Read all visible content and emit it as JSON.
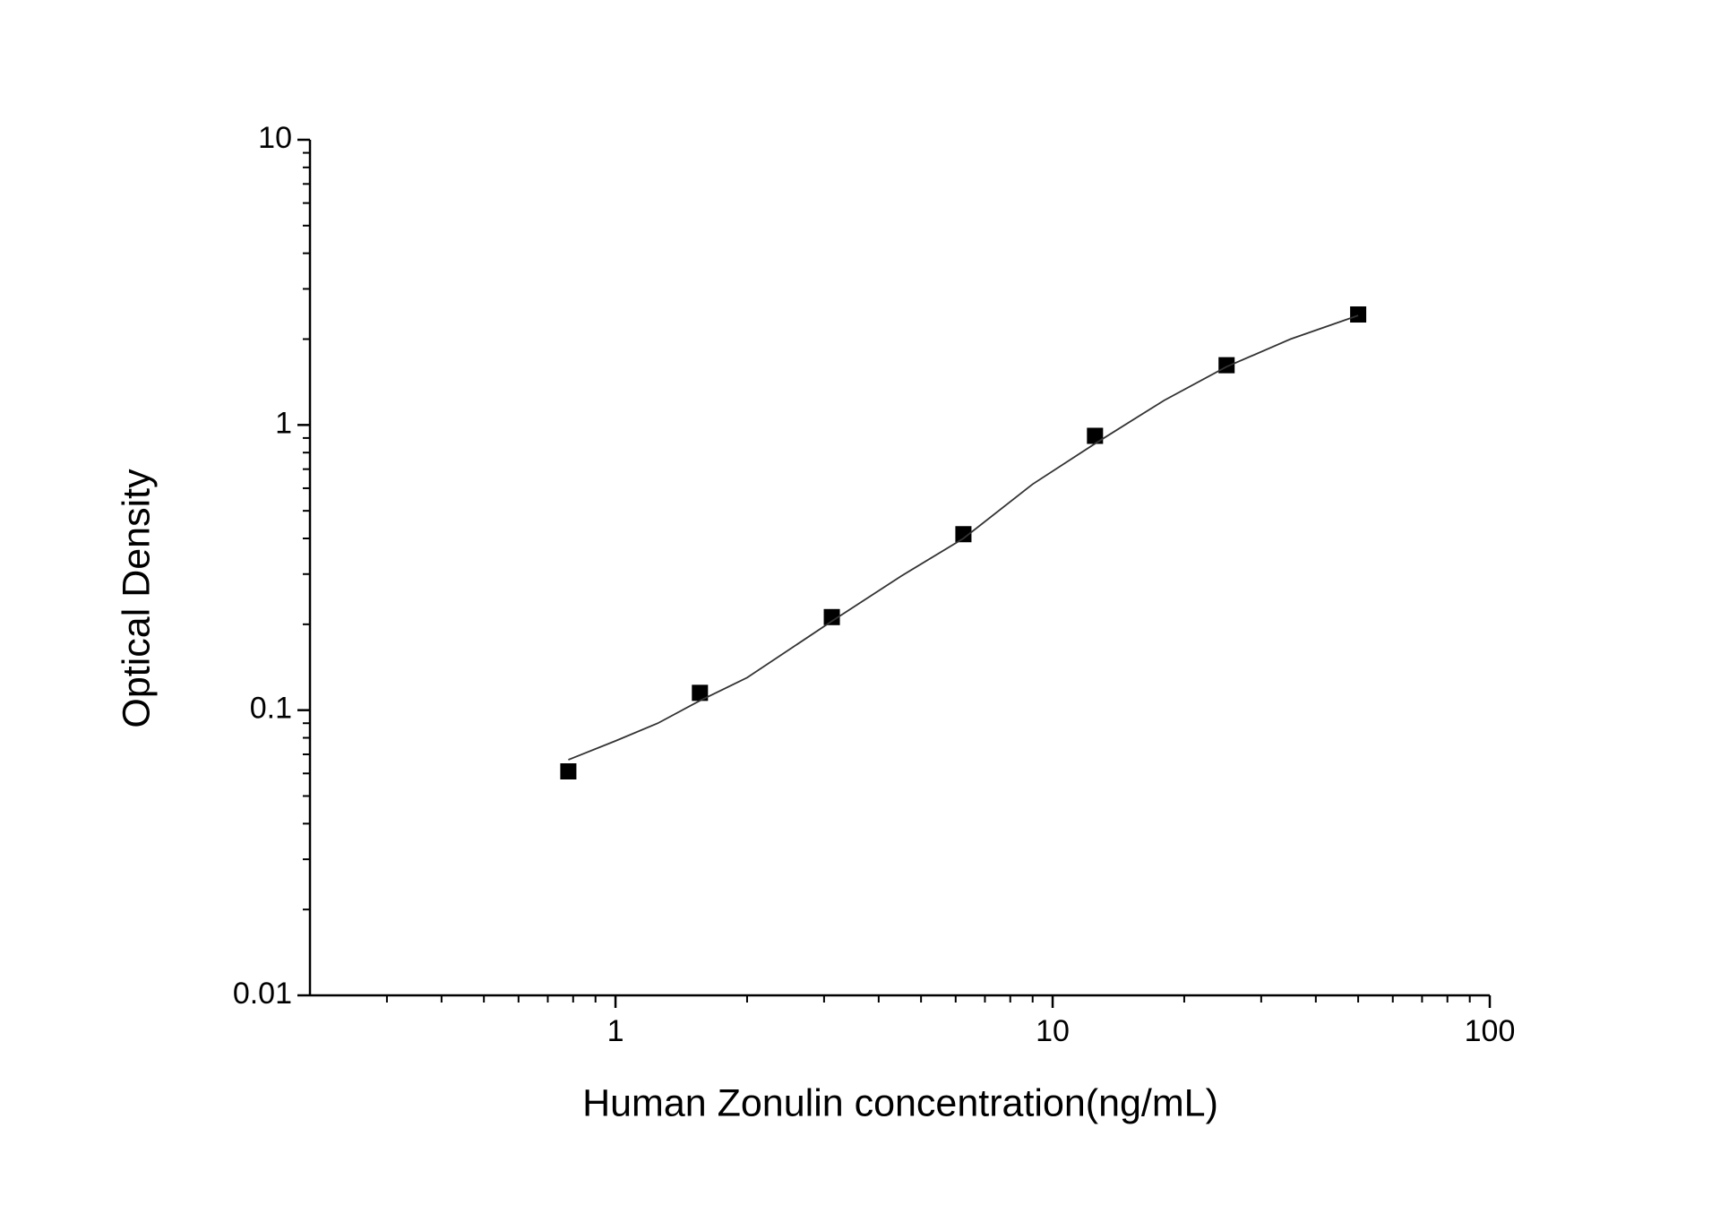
{
  "chart_data": {
    "type": "scatter",
    "x_label": "Human Zonulin concentration(ng/mL)",
    "y_label": "Optical Density",
    "xlim": [
      0.2,
      100
    ],
    "ylim": [
      0.01,
      10
    ],
    "xscale": "log",
    "yscale": "log",
    "xticks": [
      1,
      10,
      100
    ],
    "yticks": [
      0.01,
      0.1,
      1,
      10
    ],
    "xminorticks": [
      0.3,
      0.4,
      0.5,
      0.6,
      0.7,
      0.8,
      0.9,
      2,
      3,
      4,
      5,
      6,
      7,
      8,
      9,
      20,
      30,
      40,
      50,
      60,
      70,
      80,
      90
    ],
    "yminorticks": [
      0.02,
      0.03,
      0.04,
      0.05,
      0.06,
      0.07,
      0.08,
      0.09,
      0.2,
      0.3,
      0.4,
      0.5,
      0.6,
      0.7,
      0.8,
      0.9,
      2,
      3,
      4,
      5,
      6,
      7,
      8,
      9
    ],
    "series": [
      {
        "kind": "points",
        "color": "#000000",
        "x": [
          0.78,
          1.56,
          3.125,
          6.25,
          12.5,
          25,
          50
        ],
        "values": [
          0.061,
          0.115,
          0.212,
          0.414,
          0.916,
          1.62,
          2.44
        ]
      },
      {
        "kind": "fit",
        "color": "#333333",
        "x": [
          0.78,
          1,
          1.25,
          1.56,
          2,
          3.125,
          4.5,
          6.25,
          9,
          12.5,
          18,
          25,
          35,
          50
        ],
        "values": [
          0.067,
          0.078,
          0.09,
          0.108,
          0.13,
          0.205,
          0.295,
          0.4,
          0.62,
          0.86,
          1.22,
          1.6,
          2.0,
          2.42
        ]
      }
    ]
  }
}
